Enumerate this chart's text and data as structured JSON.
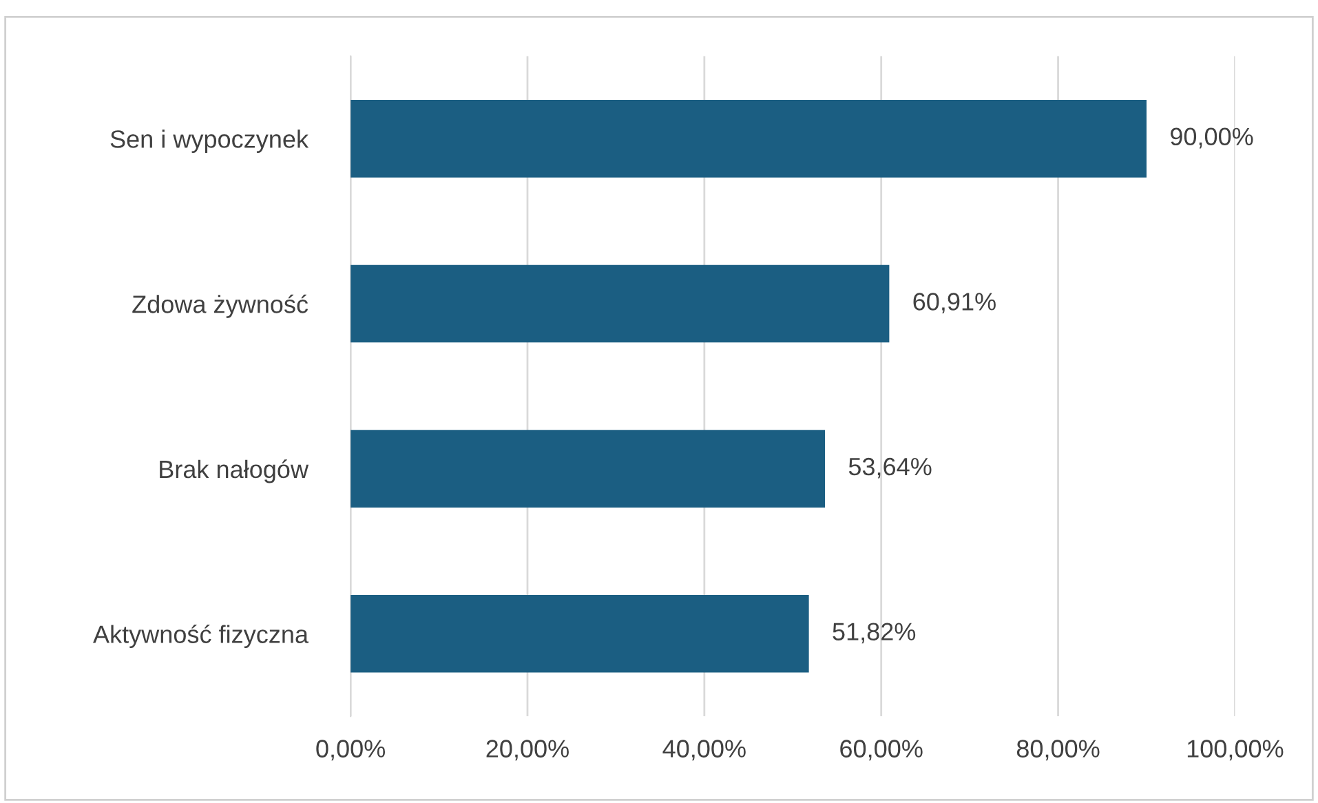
{
  "chart_data": {
    "type": "bar",
    "orientation": "horizontal",
    "categories": [
      "Sen i wypoczynek",
      "Zdowa żywność",
      "Brak nałogów",
      "Aktywność fizyczna"
    ],
    "values": [
      90.0,
      60.91,
      53.64,
      51.82
    ],
    "value_labels": [
      "90,00%",
      "60,91%",
      "53,64%",
      "51,82%"
    ],
    "color": "#1b5e82",
    "xlim": [
      0,
      100
    ],
    "xticks": [
      {
        "value": 0,
        "label": "0,00%"
      },
      {
        "value": 20,
        "label": "20,00%"
      },
      {
        "value": 40,
        "label": "40,00%"
      },
      {
        "value": 60,
        "label": "60,00%"
      },
      {
        "value": 80,
        "label": "80,00%"
      },
      {
        "value": 100,
        "label": "100,00%"
      }
    ],
    "grid": "x"
  }
}
